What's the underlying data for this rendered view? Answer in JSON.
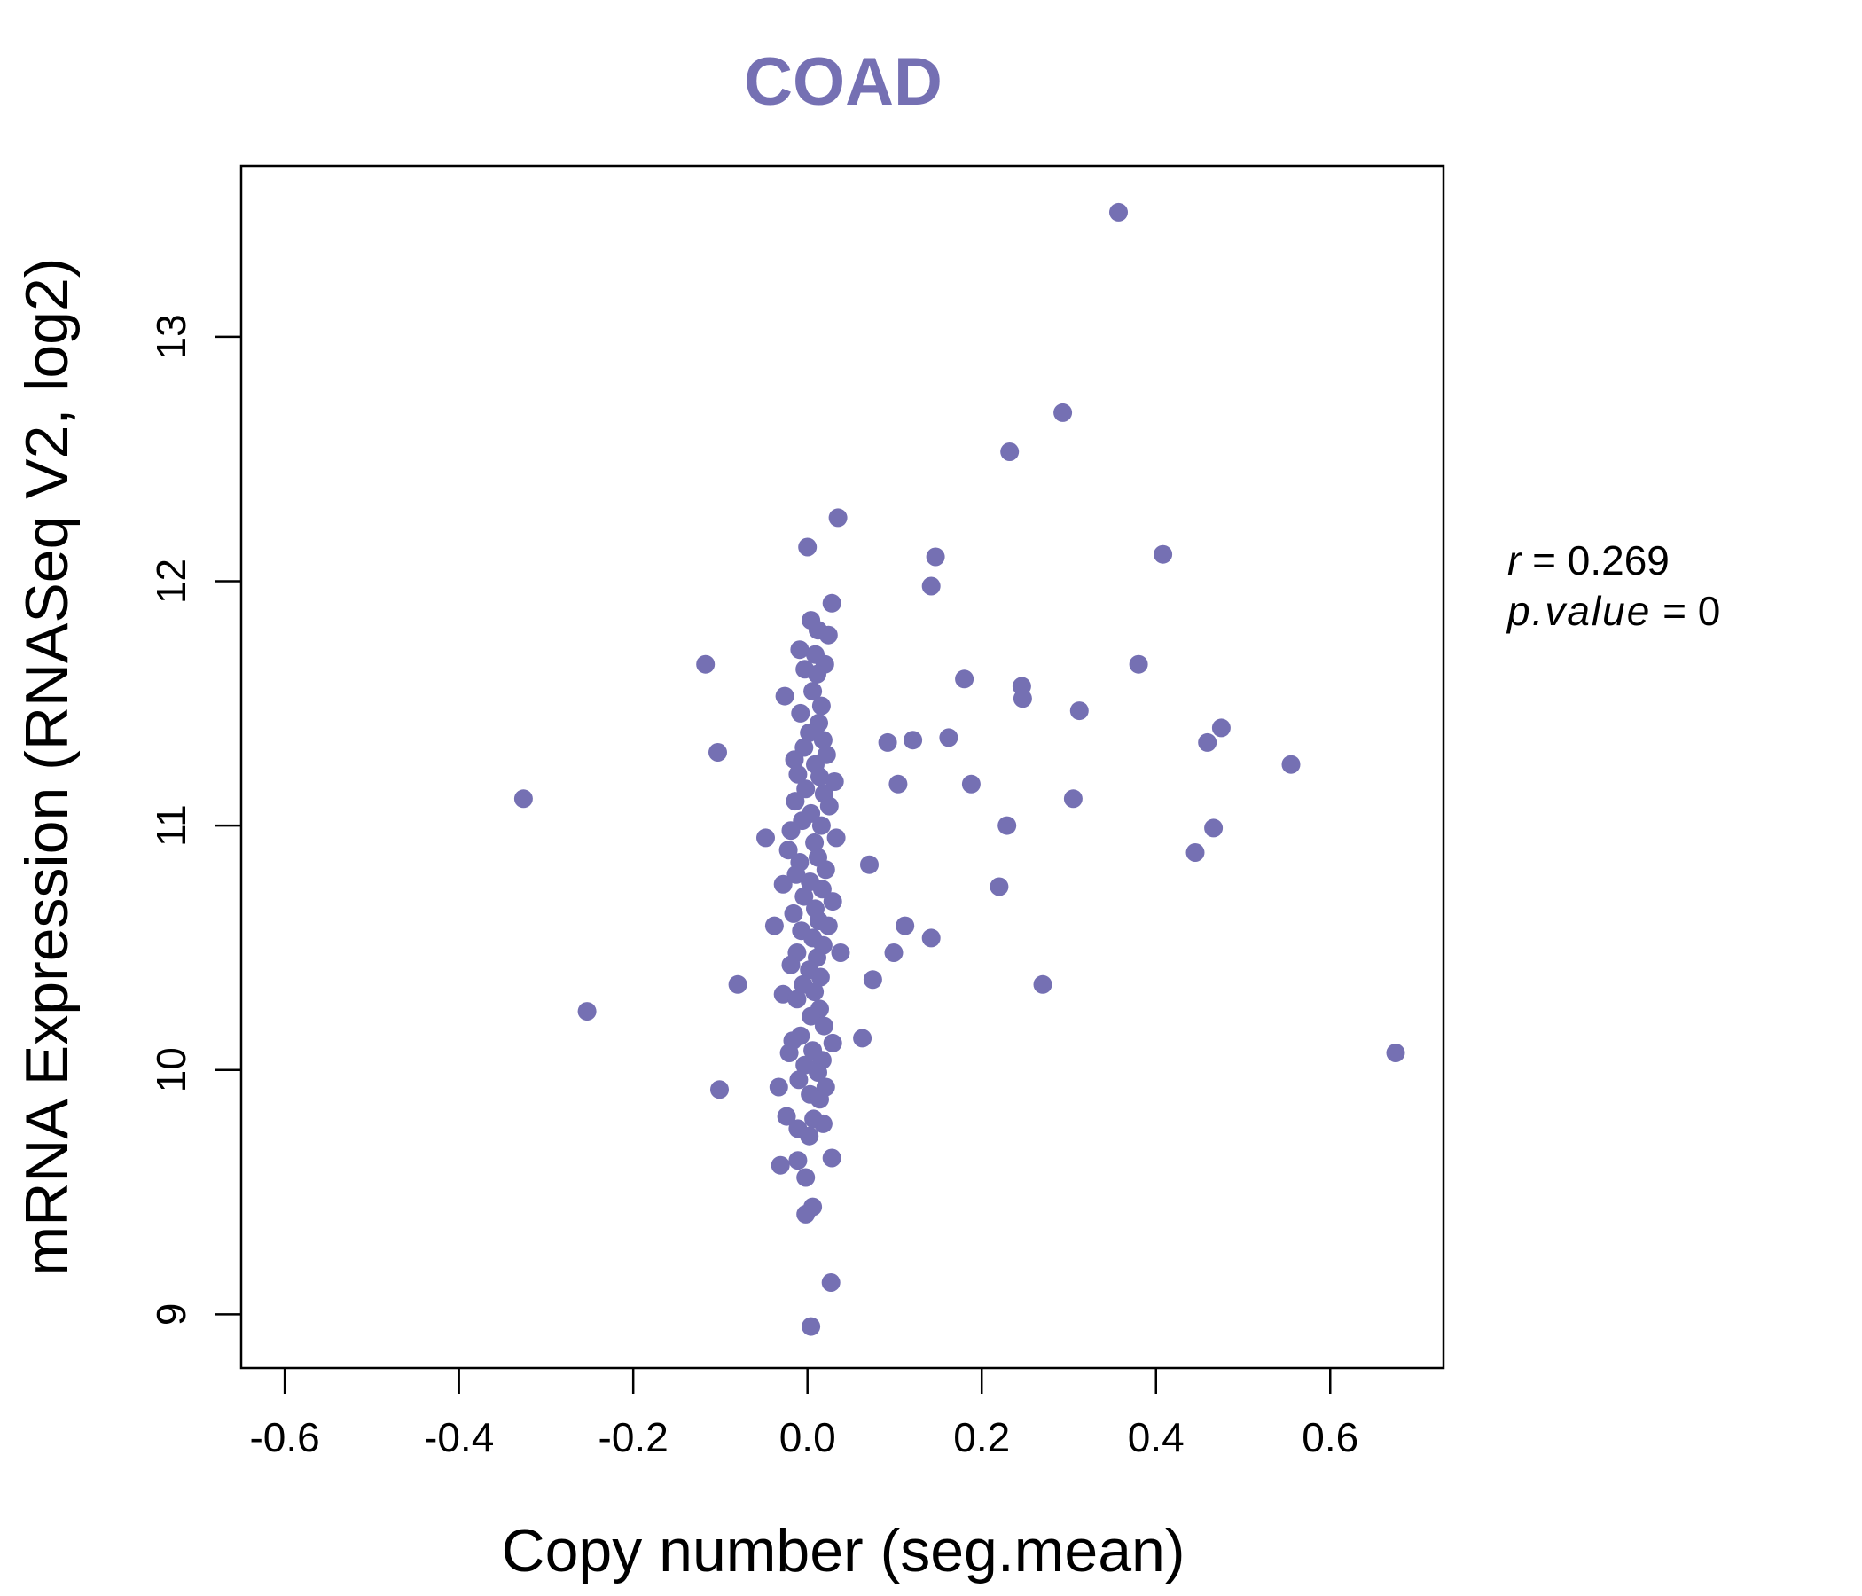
{
  "chart_data": {
    "type": "scatter",
    "title": "COAD",
    "xlabel": "Copy number (seg.mean)",
    "ylabel": "mRNA Expression (RNASeq V2, log2)",
    "xlim": [
      -0.65,
      0.73
    ],
    "ylim": [
      8.78,
      13.7
    ],
    "x_ticks": [
      -0.6,
      -0.4,
      -0.2,
      0.0,
      0.2,
      0.4,
      0.6
    ],
    "x_tick_labels": [
      "-0.6",
      "-0.4",
      "-0.2",
      "0.0",
      "0.2",
      "0.4",
      "0.6"
    ],
    "y_ticks": [
      9,
      10,
      11,
      12,
      13
    ],
    "y_tick_labels": [
      "9",
      "10",
      "11",
      "12",
      "13"
    ],
    "grid": false,
    "point_color": "#7570b3",
    "stats": {
      "r_label": "r",
      "r_value": "0.269",
      "p_label": "p.value",
      "p_value": "0"
    },
    "points": [
      [
        0.357,
        13.51
      ],
      [
        0.293,
        12.69
      ],
      [
        0.232,
        12.53
      ],
      [
        0.035,
        12.26
      ],
      [
        0.0,
        12.14
      ],
      [
        0.147,
        12.1
      ],
      [
        0.408,
        12.11
      ],
      [
        0.142,
        11.98
      ],
      [
        0.028,
        11.91
      ],
      [
        -0.117,
        11.66
      ],
      [
        0.38,
        11.66
      ],
      [
        0.18,
        11.6
      ],
      [
        0.246,
        11.57
      ],
      [
        0.247,
        11.52
      ],
      [
        0.312,
        11.47
      ],
      [
        0.475,
        11.4
      ],
      [
        0.459,
        11.34
      ],
      [
        0.092,
        11.34
      ],
      [
        0.121,
        11.35
      ],
      [
        0.162,
        11.36
      ],
      [
        -0.103,
        11.3
      ],
      [
        0.555,
        11.25
      ],
      [
        0.104,
        11.17
      ],
      [
        0.188,
        11.17
      ],
      [
        -0.326,
        11.11
      ],
      [
        0.305,
        11.11
      ],
      [
        0.229,
        11.0
      ],
      [
        0.466,
        10.99
      ],
      [
        -0.048,
        10.95
      ],
      [
        0.445,
        10.89
      ],
      [
        0.071,
        10.84
      ],
      [
        0.22,
        10.75
      ],
      [
        0.112,
        10.59
      ],
      [
        -0.038,
        10.59
      ],
      [
        0.142,
        10.54
      ],
      [
        0.099,
        10.48
      ],
      [
        0.038,
        10.48
      ],
      [
        0.075,
        10.37
      ],
      [
        -0.08,
        10.35
      ],
      [
        0.27,
        10.35
      ],
      [
        -0.253,
        10.24
      ],
      [
        0.063,
        10.13
      ],
      [
        0.675,
        10.07
      ],
      [
        -0.101,
        9.92
      ],
      [
        -0.033,
        9.93
      ],
      [
        0.028,
        9.64
      ],
      [
        -0.011,
        9.63
      ],
      [
        -0.031,
        9.61
      ],
      [
        -0.002,
        9.56
      ],
      [
        0.006,
        9.44
      ],
      [
        -0.002,
        9.41
      ],
      [
        0.027,
        9.13
      ],
      [
        0.004,
        8.95
      ],
      [
        0.004,
        11.84
      ],
      [
        0.012,
        11.8
      ],
      [
        0.024,
        11.78
      ],
      [
        -0.009,
        11.72
      ],
      [
        0.009,
        11.7
      ],
      [
        0.02,
        11.66
      ],
      [
        -0.003,
        11.64
      ],
      [
        0.011,
        11.62
      ],
      [
        0.006,
        11.55
      ],
      [
        -0.026,
        11.53
      ],
      [
        0.016,
        11.49
      ],
      [
        -0.008,
        11.46
      ],
      [
        0.013,
        11.42
      ],
      [
        0.002,
        11.38
      ],
      [
        0.018,
        11.35
      ],
      [
        -0.004,
        11.32
      ],
      [
        0.022,
        11.29
      ],
      [
        -0.015,
        11.27
      ],
      [
        0.009,
        11.25
      ],
      [
        -0.011,
        11.21
      ],
      [
        0.014,
        11.2
      ],
      [
        0.031,
        11.18
      ],
      [
        -0.002,
        11.15
      ],
      [
        0.019,
        11.13
      ],
      [
        -0.014,
        11.1
      ],
      [
        0.025,
        11.08
      ],
      [
        0.004,
        11.05
      ],
      [
        -0.006,
        11.02
      ],
      [
        0.016,
        11.0
      ],
      [
        -0.019,
        10.98
      ],
      [
        0.033,
        10.95
      ],
      [
        0.008,
        10.93
      ],
      [
        -0.022,
        10.9
      ],
      [
        0.012,
        10.87
      ],
      [
        -0.009,
        10.85
      ],
      [
        0.021,
        10.82
      ],
      [
        -0.013,
        10.8
      ],
      [
        0.003,
        10.77
      ],
      [
        -0.028,
        10.76
      ],
      [
        0.017,
        10.74
      ],
      [
        -0.004,
        10.71
      ],
      [
        0.029,
        10.69
      ],
      [
        0.009,
        10.66
      ],
      [
        -0.016,
        10.64
      ],
      [
        0.013,
        10.61
      ],
      [
        0.024,
        10.59
      ],
      [
        -0.007,
        10.57
      ],
      [
        0.006,
        10.54
      ],
      [
        0.018,
        10.51
      ],
      [
        -0.012,
        10.48
      ],
      [
        0.011,
        10.46
      ],
      [
        -0.019,
        10.43
      ],
      [
        0.002,
        10.41
      ],
      [
        0.015,
        10.38
      ],
      [
        -0.005,
        10.35
      ],
      [
        0.008,
        10.32
      ],
      [
        -0.028,
        10.31
      ],
      [
        -0.012,
        10.29
      ],
      [
        0.014,
        10.25
      ],
      [
        0.004,
        10.22
      ],
      [
        0.019,
        10.18
      ],
      [
        -0.008,
        10.14
      ],
      [
        0.029,
        10.11
      ],
      [
        -0.017,
        10.12
      ],
      [
        0.006,
        10.08
      ],
      [
        -0.021,
        10.07
      ],
      [
        0.017,
        10.04
      ],
      [
        -0.003,
        10.02
      ],
      [
        0.012,
        9.99
      ],
      [
        -0.01,
        9.96
      ],
      [
        0.021,
        9.93
      ],
      [
        0.003,
        9.9
      ],
      [
        0.014,
        9.88
      ],
      [
        -0.024,
        9.81
      ],
      [
        0.007,
        9.8
      ],
      [
        0.018,
        9.78
      ],
      [
        -0.011,
        9.76
      ],
      [
        0.002,
        9.73
      ]
    ]
  }
}
